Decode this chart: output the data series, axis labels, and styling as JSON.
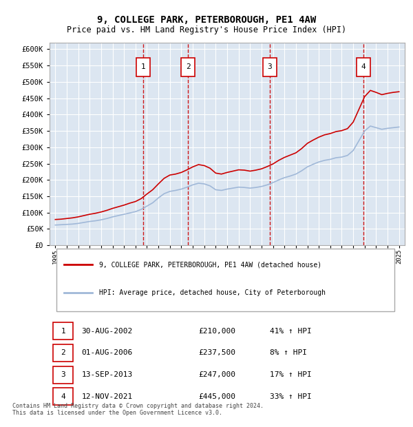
{
  "title": "9, COLLEGE PARK, PETERBOROUGH, PE1 4AW",
  "subtitle": "Price paid vs. HM Land Registry's House Price Index (HPI)",
  "ylabel": "",
  "ylim": [
    0,
    620000
  ],
  "yticks": [
    0,
    50000,
    100000,
    150000,
    200000,
    250000,
    300000,
    350000,
    400000,
    450000,
    500000,
    550000,
    600000
  ],
  "ytick_labels": [
    "£0",
    "£50K",
    "£100K",
    "£150K",
    "£200K",
    "£250K",
    "£300K",
    "£350K",
    "£400K",
    "£450K",
    "£500K",
    "£550K",
    "£600K"
  ],
  "bg_color": "#dce6f1",
  "plot_bg_color": "#dce6f1",
  "grid_color": "#ffffff",
  "hpi_color": "#a0b8d8",
  "price_color": "#cc0000",
  "vline_color": "#cc0000",
  "transaction_dates": [
    2002.66,
    2006.58,
    2013.7,
    2021.87
  ],
  "transaction_prices": [
    210000,
    237500,
    247000,
    445000
  ],
  "transaction_labels": [
    "1",
    "2",
    "3",
    "4"
  ],
  "legend_price_label": "9, COLLEGE PARK, PETERBOROUGH, PE1 4AW (detached house)",
  "legend_hpi_label": "HPI: Average price, detached house, City of Peterborough",
  "table_rows": [
    [
      "1",
      "30-AUG-2002",
      "£210,000",
      "41% ↑ HPI"
    ],
    [
      "2",
      "01-AUG-2006",
      "£237,500",
      "8% ↑ HPI"
    ],
    [
      "3",
      "13-SEP-2013",
      "£247,000",
      "17% ↑ HPI"
    ],
    [
      "4",
      "12-NOV-2021",
      "£445,000",
      "33% ↑ HPI"
    ]
  ],
  "footer": "Contains HM Land Registry data © Crown copyright and database right 2024.\nThis data is licensed under the Open Government Licence v3.0.",
  "hpi_data": {
    "years": [
      1995,
      1995.5,
      1996,
      1996.5,
      1997,
      1997.5,
      1998,
      1998.5,
      1999,
      1999.5,
      2000,
      2000.5,
      2001,
      2001.5,
      2002,
      2002.5,
      2003,
      2003.5,
      2004,
      2004.5,
      2005,
      2005.5,
      2006,
      2006.5,
      2007,
      2007.5,
      2008,
      2008.5,
      2009,
      2009.5,
      2010,
      2010.5,
      2011,
      2011.5,
      2012,
      2012.5,
      2013,
      2013.5,
      2014,
      2014.5,
      2015,
      2015.5,
      2016,
      2016.5,
      2017,
      2017.5,
      2018,
      2018.5,
      2019,
      2019.5,
      2020,
      2020.5,
      2021,
      2021.5,
      2022,
      2022.5,
      2023,
      2023.5,
      2024,
      2024.5,
      2025
    ],
    "values": [
      62000,
      63000,
      64000,
      65000,
      67000,
      70000,
      73000,
      75000,
      78000,
      82000,
      87000,
      91000,
      95000,
      99000,
      103000,
      110000,
      120000,
      130000,
      145000,
      158000,
      165000,
      168000,
      172000,
      178000,
      185000,
      190000,
      188000,
      182000,
      170000,
      168000,
      172000,
      175000,
      178000,
      177000,
      175000,
      177000,
      180000,
      185000,
      192000,
      200000,
      207000,
      212000,
      218000,
      228000,
      240000,
      248000,
      255000,
      260000,
      263000,
      268000,
      270000,
      275000,
      290000,
      320000,
      350000,
      365000,
      360000,
      355000,
      358000,
      360000,
      362000
    ]
  },
  "price_data": {
    "years": [
      1995,
      1995.5,
      1996,
      1996.5,
      1997,
      1997.5,
      1998,
      1998.5,
      1999,
      1999.5,
      2000,
      2000.5,
      2001,
      2001.5,
      2002,
      2002.5,
      2003,
      2003.5,
      2004,
      2004.5,
      2005,
      2005.5,
      2006,
      2006.5,
      2007,
      2007.5,
      2008,
      2008.5,
      2009,
      2009.5,
      2010,
      2010.5,
      2011,
      2011.5,
      2012,
      2012.5,
      2013,
      2013.5,
      2014,
      2014.5,
      2015,
      2015.5,
      2016,
      2016.5,
      2017,
      2017.5,
      2018,
      2018.5,
      2019,
      2019.5,
      2020,
      2020.5,
      2021,
      2021.5,
      2022,
      2022.5,
      2023,
      2023.5,
      2024,
      2024.5,
      2025
    ],
    "values": [
      79000,
      80000,
      82000,
      84000,
      87000,
      91000,
      95000,
      98000,
      102000,
      107000,
      113000,
      118000,
      123000,
      129000,
      134000,
      143000,
      157000,
      170000,
      188000,
      205000,
      215000,
      218000,
      223000,
      231000,
      240000,
      247000,
      244000,
      236000,
      221000,
      218000,
      223000,
      227000,
      231000,
      230000,
      227000,
      230000,
      234000,
      241000,
      249000,
      260000,
      269000,
      276000,
      283000,
      296000,
      312000,
      322000,
      331000,
      338000,
      342000,
      348000,
      351000,
      357000,
      377000,
      416000,
      455000,
      474000,
      468000,
      461000,
      465000,
      468000,
      470000
    ]
  }
}
